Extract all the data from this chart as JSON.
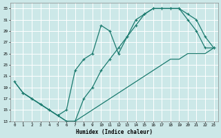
{
  "xlabel": "Humidex (Indice chaleur)",
  "background_color": "#cce8e8",
  "grid_color": "#ffffff",
  "line_color": "#1a7a6e",
  "ylim": [
    13,
    34
  ],
  "xlim": [
    -0.5,
    23.5
  ],
  "yticks": [
    13,
    15,
    17,
    19,
    21,
    23,
    25,
    27,
    29,
    31,
    33
  ],
  "xticks": [
    0,
    1,
    2,
    3,
    4,
    5,
    6,
    7,
    8,
    9,
    10,
    11,
    12,
    13,
    14,
    15,
    16,
    17,
    18,
    19,
    20,
    21,
    22,
    23
  ],
  "curve1_x": [
    0,
    1,
    2,
    3,
    4,
    5,
    6,
    7,
    8,
    9,
    10,
    11,
    12,
    13,
    14,
    15,
    16,
    17,
    18,
    19,
    20,
    21,
    22,
    23
  ],
  "curve1_y": [
    20,
    18,
    17,
    16,
    15,
    14,
    13,
    13,
    17,
    19,
    22,
    24,
    26,
    28,
    30,
    32,
    33,
    33,
    33,
    33,
    32,
    31,
    28,
    26
  ],
  "curve2_x": [
    1,
    2,
    3,
    4,
    5,
    6,
    7,
    8,
    9,
    10,
    11,
    12,
    13,
    14,
    15,
    16,
    17,
    18,
    19,
    20,
    21,
    22,
    23
  ],
  "curve2_y": [
    18,
    17,
    16,
    15,
    14,
    15,
    22,
    24,
    25,
    30,
    29,
    25,
    28,
    31,
    32,
    33,
    33,
    33,
    33,
    31,
    29,
    26,
    26
  ],
  "curve3_x": [
    0,
    1,
    2,
    3,
    4,
    5,
    6,
    7,
    8,
    9,
    10,
    11,
    12,
    13,
    14,
    15,
    16,
    17,
    18,
    19,
    20,
    21,
    22,
    23
  ],
  "curve3_y": [
    20,
    18,
    17,
    16,
    15,
    14,
    13,
    13,
    14,
    15,
    16,
    17,
    18,
    19,
    20,
    21,
    22,
    23,
    24,
    24,
    25,
    25,
    25,
    26
  ]
}
